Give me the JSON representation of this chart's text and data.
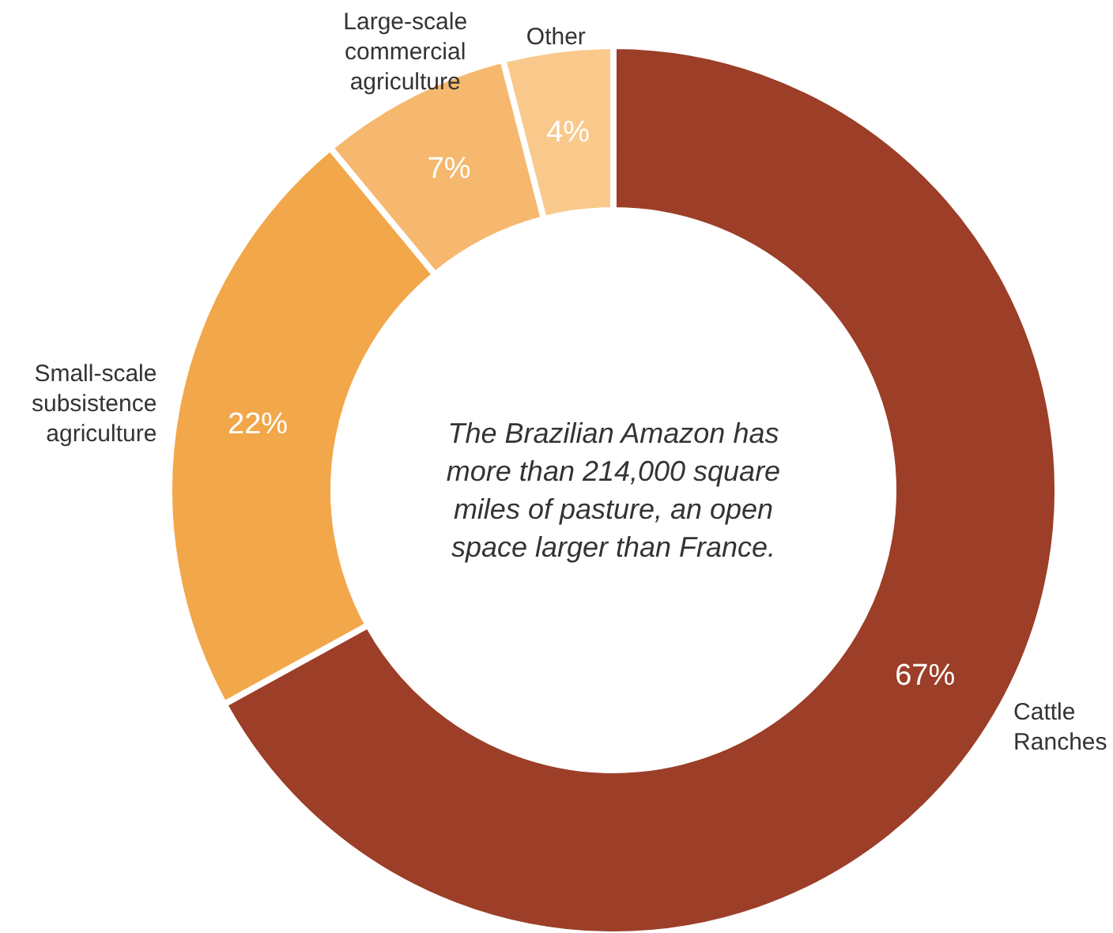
{
  "chart_data": {
    "type": "donut",
    "categories": [
      "Cattle Ranches",
      "Small-scale subsistence agriculture",
      "Large-scale commercial agriculture",
      "Other"
    ],
    "values": [
      67,
      22,
      7,
      4
    ],
    "value_labels": [
      "67%",
      "22%",
      "7%",
      "4%"
    ],
    "colors": [
      "#9c3e28",
      "#f2a74a",
      "#f6b86e",
      "#f9c98c"
    ],
    "annotations": [
      "The Brazilian Amazon has more than 214,000 square miles of pasture, an open space larger than France."
    ]
  }
}
